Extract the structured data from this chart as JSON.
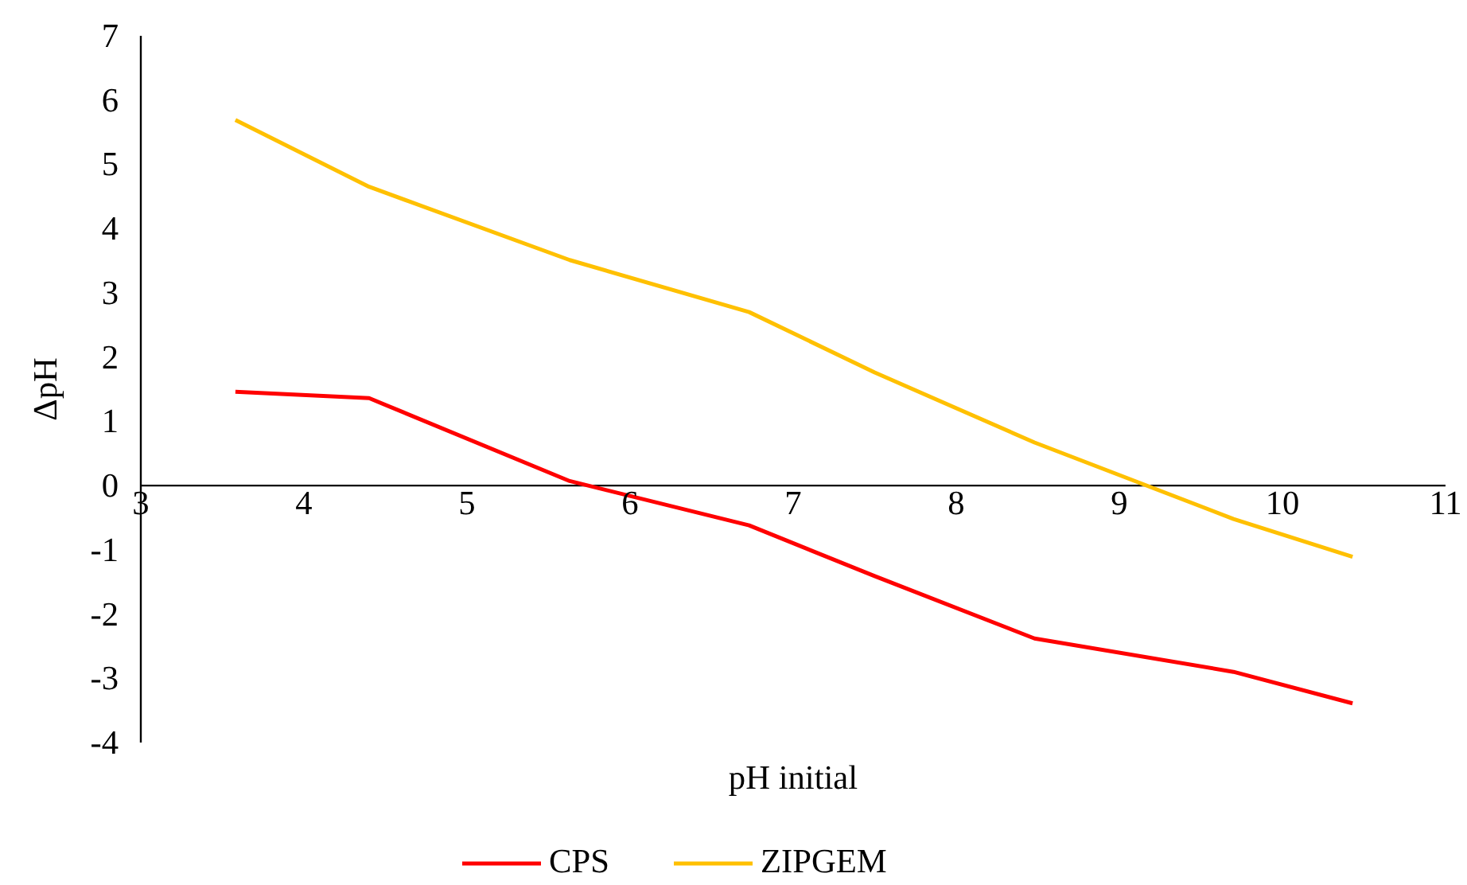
{
  "chart_data": {
    "type": "line",
    "xlabel": "pH initial",
    "ylabel": "ΔpH",
    "x": [
      3.58,
      4.4,
      5.63,
      6.73,
      7.5,
      8.48,
      9.7,
      10.43
    ],
    "series": [
      {
        "name": "CPS",
        "color": "#ff0000",
        "values": [
          1.46,
          1.36,
          0.07,
          -0.62,
          -1.41,
          -2.38,
          -2.9,
          -3.39
        ]
      },
      {
        "name": "ZIPGEM",
        "color": "#ffc000",
        "values": [
          5.69,
          4.65,
          3.51,
          2.7,
          1.76,
          0.67,
          -0.52,
          -1.11
        ]
      }
    ],
    "xlim": [
      3,
      11
    ],
    "xticks": [
      3,
      4,
      5,
      6,
      7,
      8,
      9,
      10,
      11
    ],
    "ylim": [
      -4,
      7
    ],
    "yticks": [
      -4,
      -3,
      -2,
      -1,
      0,
      1,
      2,
      3,
      4,
      5,
      6,
      7
    ],
    "grid": false,
    "legend": "bottom",
    "marker": "none",
    "line_style": "solid"
  }
}
